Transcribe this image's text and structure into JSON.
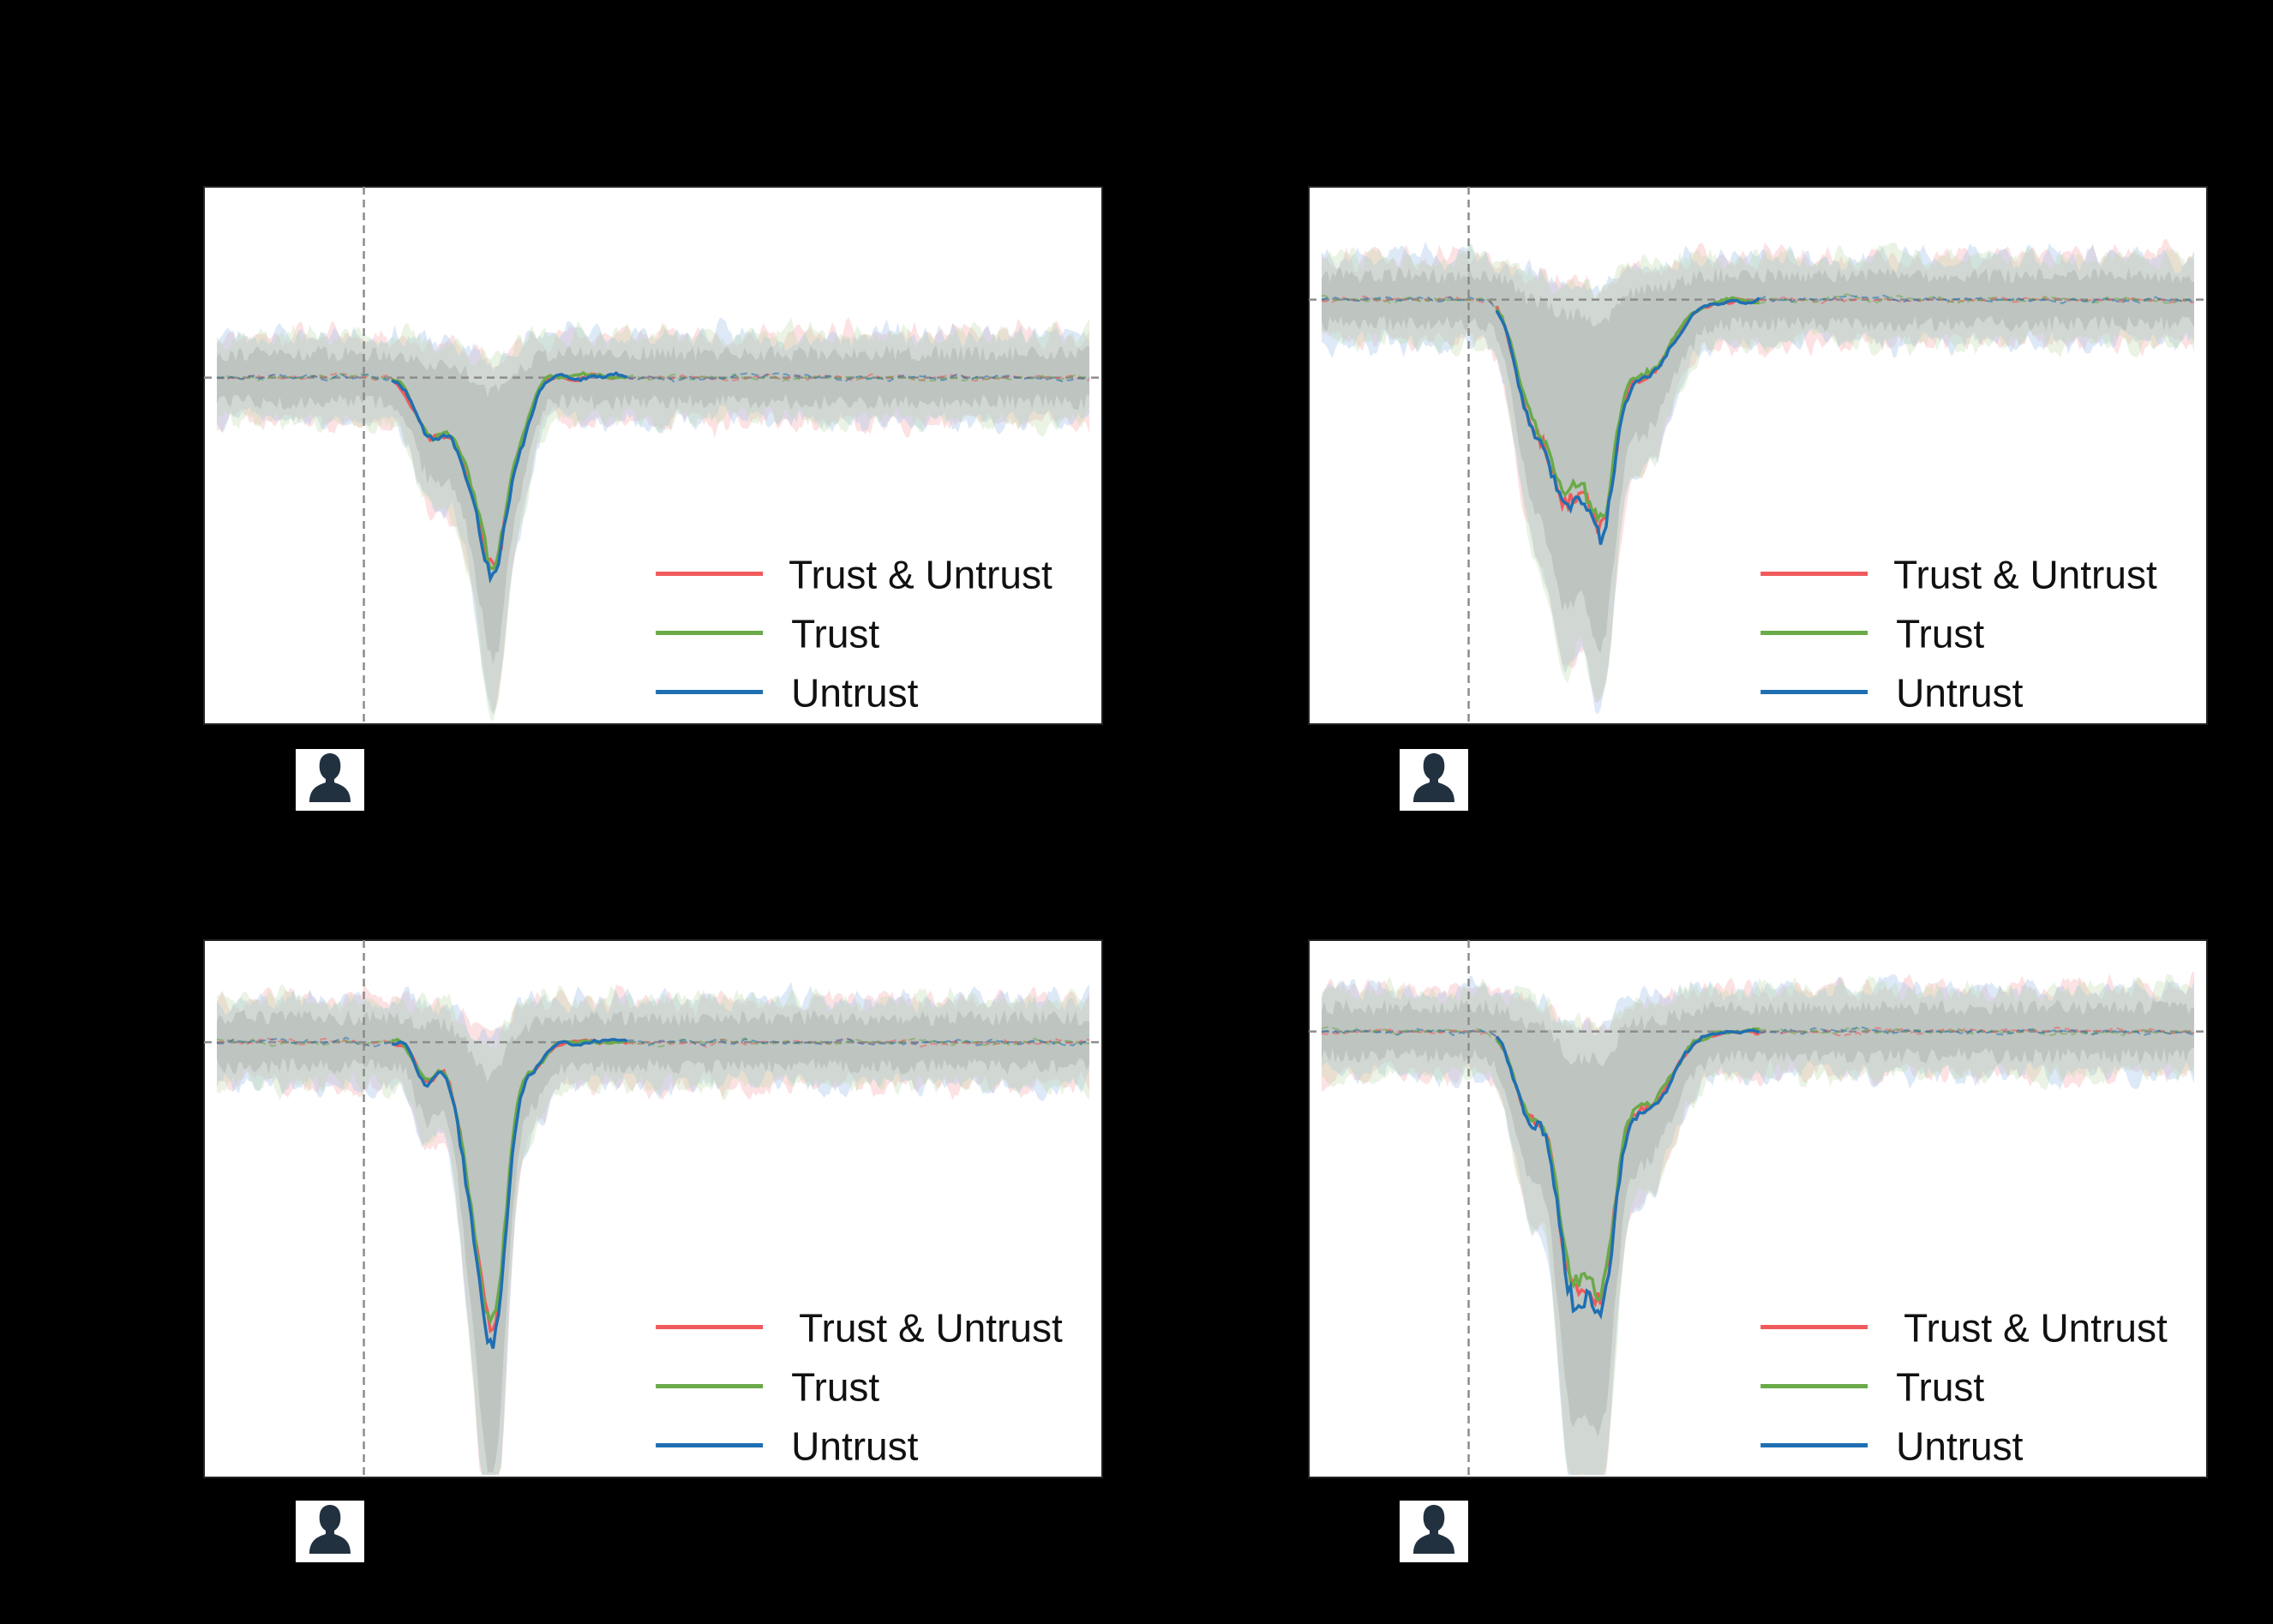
{
  "figure": {
    "background": "#000000"
  },
  "colors": {
    "trust_untrust": "#f05a5b",
    "trust": "#6aaa48",
    "untrust": "#1f6fb2",
    "band_red": "#f7b6b8",
    "band_green": "#b8d8a6",
    "band_blue": "#a9c9ea",
    "band_gray": "#9aa0a0",
    "reference_line": "#8c8c8c"
  },
  "chart_data": [
    {
      "type": "line",
      "grid": false,
      "legend_position": "lower-right",
      "marker_icon": "person-silhouette-icon",
      "series": [
        {
          "name": "Trust & Untrust",
          "color_key": "trust_untrust"
        },
        {
          "name": "Trust",
          "color_key": "trust"
        },
        {
          "name": "Untrust",
          "color_key": "untrust"
        }
      ]
    },
    {
      "type": "line",
      "grid": false,
      "legend_position": "lower-right",
      "marker_icon": "person-silhouette-icon",
      "series": [
        {
          "name": "Trust & Untrust",
          "color_key": "trust_untrust"
        },
        {
          "name": "Trust",
          "color_key": "trust"
        },
        {
          "name": "Untrust",
          "color_key": "untrust"
        }
      ]
    },
    {
      "type": "line",
      "grid": false,
      "legend_position": "lower-right",
      "marker_icon": "person-silhouette-icon",
      "series": [
        {
          "name": "Trust & Untrust",
          "color_key": "trust_untrust"
        },
        {
          "name": "Trust",
          "color_key": "trust"
        },
        {
          "name": "Untrust",
          "color_key": "untrust"
        }
      ]
    },
    {
      "type": "line",
      "grid": false,
      "legend_position": "lower-right",
      "marker_icon": "person-silhouette-icon",
      "series": [
        {
          "name": "Trust & Untrust",
          "color_key": "trust_untrust"
        },
        {
          "name": "Trust",
          "color_key": "trust"
        },
        {
          "name": "Untrust",
          "color_key": "untrust"
        }
      ]
    }
  ]
}
